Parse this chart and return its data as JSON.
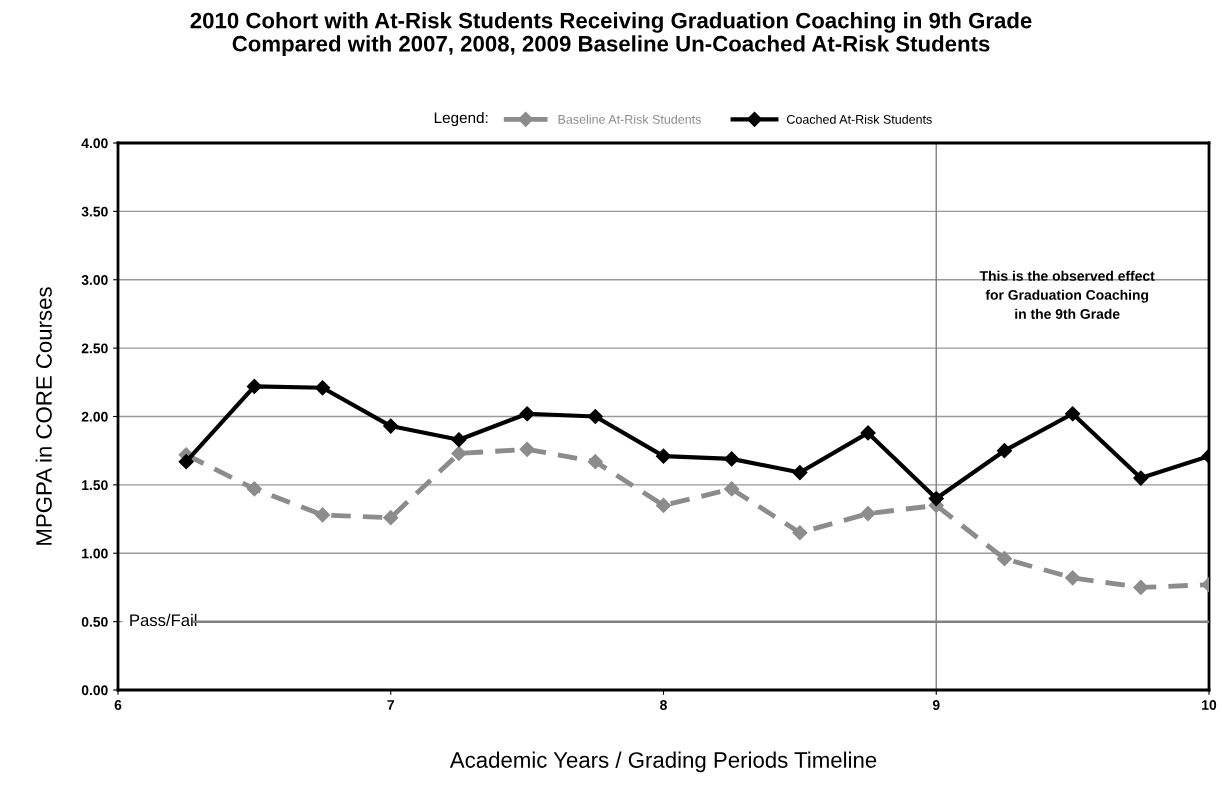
{
  "chart_data": {
    "type": "line",
    "title": "2010 Cohort with At-Risk Students Receiving Graduation Coaching in 9th Grade\nCompared with 2007, 2008, 2009 Baseline Un-Coached At-Risk Students",
    "xlabel": "Academic Years / Grading Periods Timeline",
    "ylabel": "MPGPA in CORE Courses",
    "legend_title": "Legend:",
    "x": [
      6.25,
      6.5,
      6.75,
      7,
      7.25,
      7.5,
      7.75,
      8,
      8.25,
      8.5,
      8.75,
      9,
      9.25,
      9.5,
      9.75,
      10
    ],
    "series": [
      {
        "name": "Baseline At-Risk Students",
        "color": "#8c8c8c",
        "line_style": "dashed",
        "values": [
          1.72,
          1.47,
          1.28,
          1.26,
          1.73,
          1.76,
          1.67,
          1.35,
          1.47,
          1.15,
          1.29,
          1.35,
          0.96,
          0.82,
          0.75,
          0.77
        ]
      },
      {
        "name": "Coached At-Risk Students",
        "color": "#000000",
        "line_style": "solid",
        "values": [
          1.67,
          2.22,
          2.21,
          1.93,
          1.83,
          2.02,
          2.0,
          1.71,
          1.69,
          1.59,
          1.88,
          1.4,
          1.75,
          2.02,
          1.55,
          1.71
        ]
      }
    ],
    "xlim": [
      6,
      10
    ],
    "xticks": [
      6,
      7,
      8,
      9,
      10
    ],
    "ylim": [
      0,
      4
    ],
    "yticks": [
      {
        "value": 0,
        "label": "0.00"
      },
      {
        "value": 0.5,
        "label": "0.50"
      },
      {
        "value": 1,
        "label": "1.00"
      },
      {
        "value": 1.5,
        "label": "1.50"
      },
      {
        "value": 2,
        "label": "2.00"
      },
      {
        "value": 2.5,
        "label": "2.50"
      },
      {
        "value": 3,
        "label": "3.00"
      },
      {
        "value": 3.5,
        "label": "3.50"
      },
      {
        "value": 4,
        "label": "4.00"
      }
    ],
    "grid": "y",
    "legend": "top",
    "marker": "diamond",
    "ref_lines": [
      {
        "axis": "y",
        "value": 0.5,
        "label": "Pass/Fail",
        "color": "#808080"
      },
      {
        "axis": "x",
        "value": 9,
        "color": "#808080"
      }
    ],
    "annotations": [
      "This is the observed effect\nfor Graduation Coaching\nin the 9th Grade"
    ]
  }
}
